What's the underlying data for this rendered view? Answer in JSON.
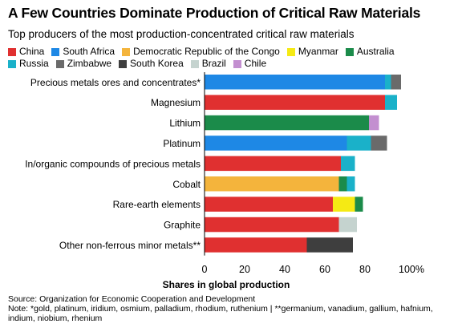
{
  "title": "A Few Countries Dominate Production of Critical Raw Materials",
  "subtitle": "Top producers of the most production-concentrated critical raw materials",
  "source": "Source: Organization for Economic Cooperation and Development",
  "note": "Note: *gold, platinum, iridium, osmium, palladium, rhodium, ruthenium | **germanium, vanadium, gallium, hafnium, indium, niobium, rhenium",
  "colors": {
    "China": "#e03030",
    "South Africa": "#1e88e5",
    "Democratic Republic of the Congo": "#f4b43c",
    "Myanmar": "#f5ea14",
    "Australia": "#1b8b4a",
    "Russia": "#1ab1c9",
    "Zimbabwe": "#6a6a6a",
    "South Korea": "#3e3e3e",
    "Brazil": "#c5d3cf",
    "Chile": "#c38fd0"
  },
  "chart_data": {
    "type": "bar",
    "orientation": "horizontal",
    "stacked": true,
    "title": "A Few Countries Dominate Production of Critical Raw Materials",
    "subtitle": "Top producers of the most production-concentrated critical raw materials",
    "xlabel": "Shares in global production",
    "ylabel": "",
    "xlim": [
      0,
      100
    ],
    "xticks": [
      "0",
      "20",
      "40",
      "60",
      "80",
      "100%"
    ],
    "legend": {
      "placement": "top",
      "rows": [
        [
          "China",
          "South Africa",
          "Democratic Republic of the Congo",
          "Myanmar",
          "Australia"
        ],
        [
          "Russia",
          "Zimbabwe",
          "South Korea",
          "Brazil",
          "Chile"
        ]
      ]
    },
    "categories": [
      "Precious metals ores and concentrates*",
      "Magnesium",
      "Lithium",
      "Platinum",
      "In/organic compounds of precious metals",
      "Cobalt",
      "Rare-earth elements",
      "Graphite",
      "Other non-ferrous minor metals**"
    ],
    "bars": [
      [
        {
          "country": "South Africa",
          "value": 90
        },
        {
          "country": "Russia",
          "value": 3
        },
        {
          "country": "Zimbabwe",
          "value": 5
        }
      ],
      [
        {
          "country": "China",
          "value": 90
        },
        {
          "country": "Russia",
          "value": 6
        }
      ],
      [
        {
          "country": "Australia",
          "value": 82
        },
        {
          "country": "Chile",
          "value": 5
        }
      ],
      [
        {
          "country": "South Africa",
          "value": 71
        },
        {
          "country": "Russia",
          "value": 12
        },
        {
          "country": "Zimbabwe",
          "value": 8
        }
      ],
      [
        {
          "country": "China",
          "value": 68
        },
        {
          "country": "Russia",
          "value": 7
        }
      ],
      [
        {
          "country": "Democratic Republic of the Congo",
          "value": 67
        },
        {
          "country": "Australia",
          "value": 4
        },
        {
          "country": "Russia",
          "value": 4
        }
      ],
      [
        {
          "country": "China",
          "value": 64
        },
        {
          "country": "Myanmar",
          "value": 11
        },
        {
          "country": "Australia",
          "value": 4
        }
      ],
      [
        {
          "country": "China",
          "value": 67
        },
        {
          "country": "Brazil",
          "value": 9
        }
      ],
      [
        {
          "country": "China",
          "value": 51
        },
        {
          "country": "South Korea",
          "value": 23
        }
      ]
    ]
  }
}
